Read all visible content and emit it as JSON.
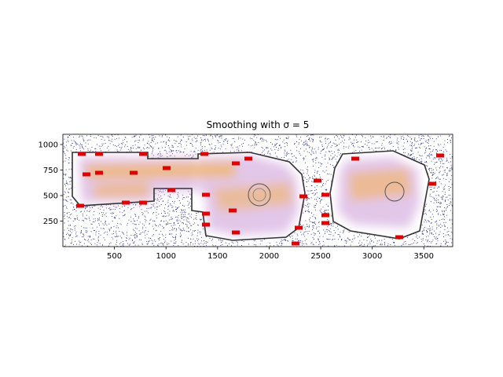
{
  "chart_data": {
    "type": "heatmap",
    "title": "Smoothing with  σ = 5",
    "xlabel": "",
    "ylabel": "",
    "xlim": [
      0,
      3780
    ],
    "ylim": [
      0,
      1100
    ],
    "x_ticks": [
      500,
      1000,
      1500,
      2000,
      2500,
      3000,
      3500
    ],
    "y_ticks": [
      250,
      500,
      750,
      1000
    ],
    "grid": false,
    "legend": "none",
    "colors": {
      "scatter_noise": "#1a237e",
      "density_high": "#f5a623",
      "density_mid": "#c9a0dc",
      "density_low": "#e6e6fa",
      "walls": "#444444",
      "markers": "#e00000"
    },
    "overlay": "floor-plan with smoothed trajectory density"
  }
}
